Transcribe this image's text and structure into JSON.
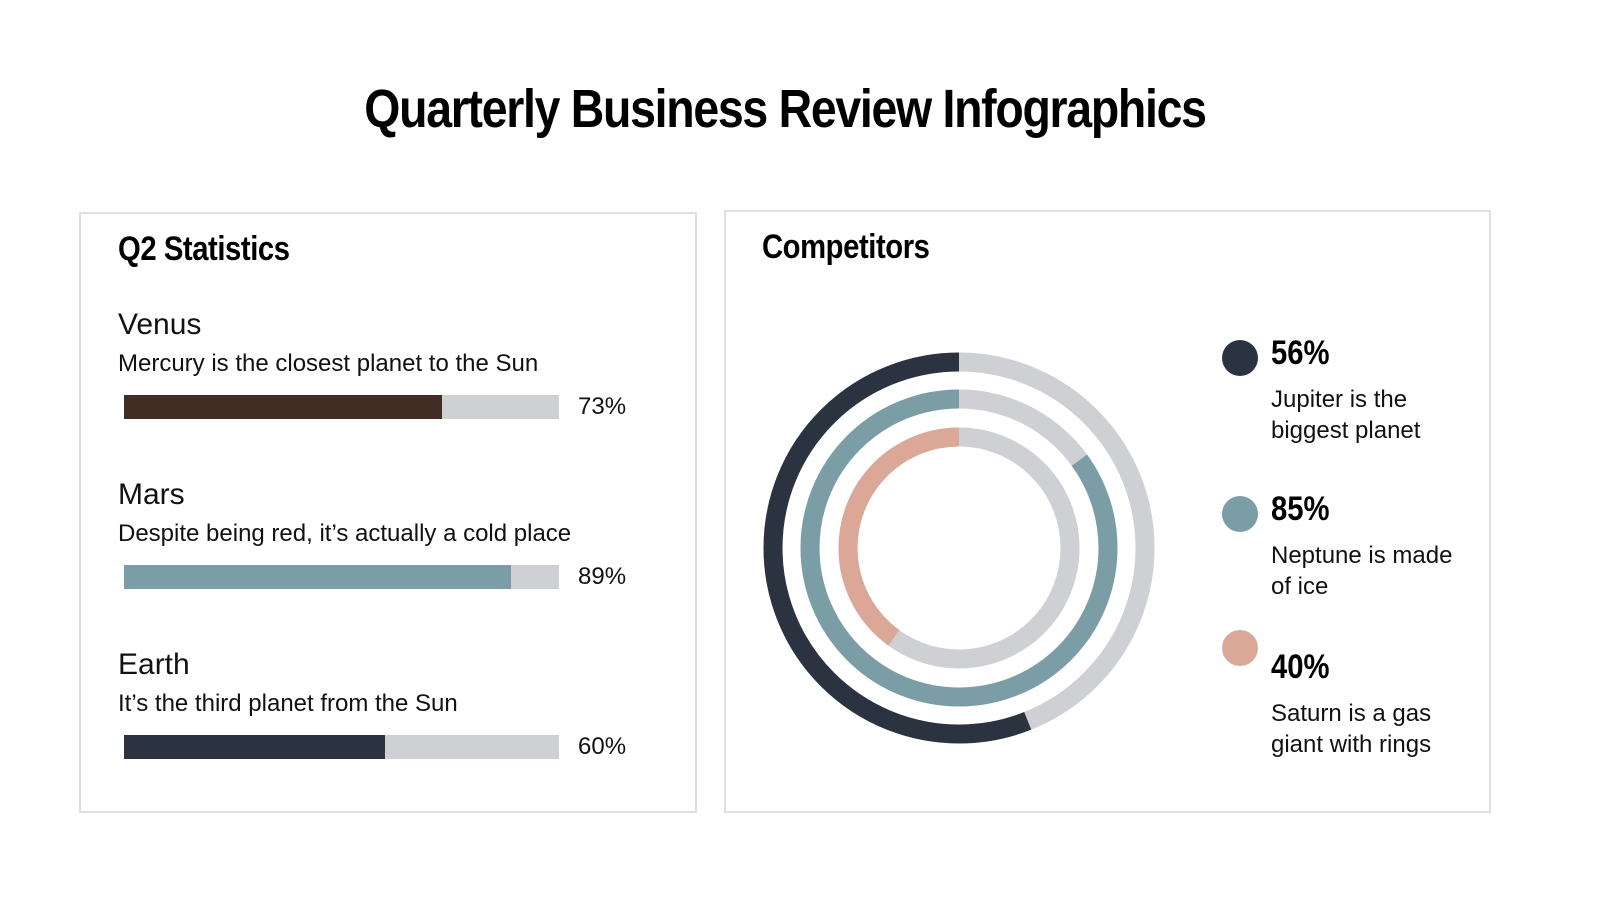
{
  "page": {
    "title": "Quarterly Business Review Infographics"
  },
  "colors": {
    "dark_navy": "#2b3340",
    "slate_teal": "#7b9ea6",
    "brown": "#422d24",
    "salmon": "#dba897",
    "track_gray": "#cfd0d3",
    "card_border": "#dedfe1"
  },
  "q2": {
    "title": "Q2 Statistics",
    "items": [
      {
        "name": "Venus",
        "description": "Mercury is the closest planet to the Sun",
        "value": 73,
        "value_label": "73%",
        "color": "#422d24"
      },
      {
        "name": "Mars",
        "description": "Despite being red, it’s actually a cold place",
        "value": 89,
        "value_label": "89%",
        "color": "#7b9ea6"
      },
      {
        "name": "Earth",
        "description": "It’s the third planet from the Sun",
        "value": 60,
        "value_label": "60%",
        "color": "#2b3340"
      }
    ]
  },
  "competitors": {
    "title": "Competitors",
    "items": [
      {
        "value": 56,
        "value_label": "56%",
        "description": "Jupiter is the biggest planet",
        "color": "#2b3340"
      },
      {
        "value": 85,
        "value_label": "85%",
        "description": "Neptune is made of ice",
        "color": "#7b9ea6"
      },
      {
        "value": 40,
        "value_label": "40%",
        "description": "Saturn is a gas giant with rings",
        "color": "#dba897"
      }
    ]
  },
  "chart_data": [
    {
      "type": "bar",
      "title": "Q2 Statistics",
      "orientation": "horizontal",
      "categories": [
        "Venus",
        "Mars",
        "Earth"
      ],
      "values": [
        73,
        89,
        60
      ],
      "value_labels": [
        "73%",
        "89%",
        "60%"
      ],
      "descriptions": [
        "Mercury is the closest planet to the Sun",
        "Despite being red, it’s actually a cold place",
        "It’s the third planet from the Sun"
      ],
      "xlim": [
        0,
        100
      ],
      "grid": false
    },
    {
      "type": "pie",
      "subtype": "concentric-radial-progress",
      "title": "Competitors",
      "categories": [
        "Jupiter",
        "Neptune",
        "Saturn"
      ],
      "values": [
        56,
        85,
        40
      ],
      "value_labels": [
        "56%",
        "85%",
        "40%"
      ],
      "rings_outer_to_inner": [
        "Jupiter",
        "Neptune",
        "Saturn"
      ],
      "descriptions": [
        "Jupiter is the biggest planet",
        "Neptune is made of ice",
        "Saturn is a gas giant with rings"
      ],
      "max": 100,
      "legend_position": "right"
    }
  ]
}
